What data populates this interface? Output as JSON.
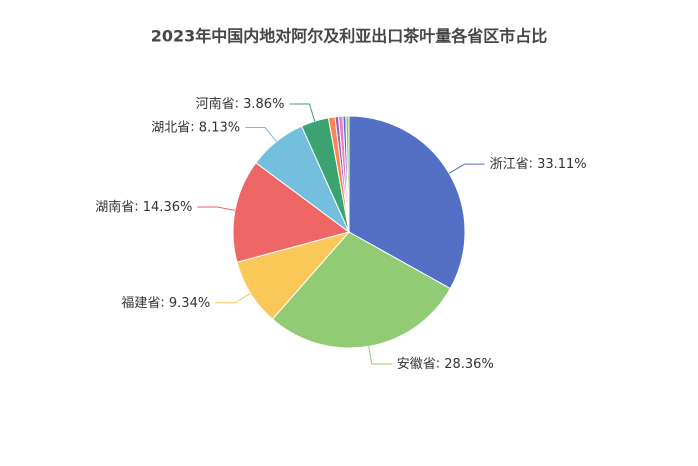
{
  "chart_data": {
    "type": "pie",
    "title": "2023年中国内地对阿尔及利亚出口茶叶量各省区市占比",
    "categories": [
      "浙江省",
      "安徽省",
      "福建省",
      "湖南省",
      "湖北省",
      "河南省",
      null,
      null,
      null,
      null,
      null
    ],
    "values": [
      33.11,
      28.36,
      9.34,
      14.36,
      8.13,
      3.86,
      0.9,
      0.5,
      0.6,
      0.4,
      0.44
    ],
    "value_labels": [
      "33.11%",
      "28.36%",
      "9.34%",
      "14.36%",
      "8.13%",
      "3.86%",
      null,
      null,
      null,
      null,
      null
    ],
    "colors": [
      "#5470c6",
      "#91cc75",
      "#fac858",
      "#ee6666",
      "#73c0de",
      "#3ba272",
      "#fc8452",
      "#9a60b4",
      "#ea7ccc",
      "#5470c6",
      "#91cc75"
    ]
  }
}
